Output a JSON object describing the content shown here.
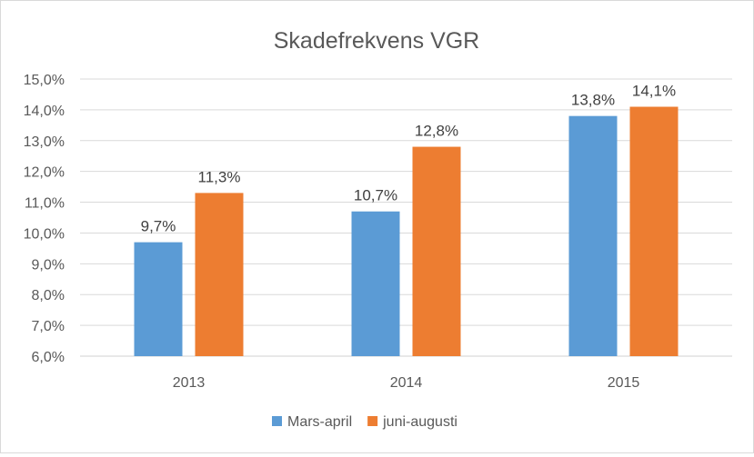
{
  "chart_data": {
    "type": "bar",
    "title": "Skadefrekvens VGR",
    "categories": [
      "2013",
      "2014",
      "2015"
    ],
    "series": [
      {
        "name": "Mars-april",
        "values": [
          9.7,
          10.7,
          13.8
        ],
        "labels": [
          "9,7%",
          "10,7%",
          "13,8%"
        ],
        "color": "#5b9bd5"
      },
      {
        "name": "juni-augusti",
        "values": [
          11.3,
          12.8,
          14.1
        ],
        "labels": [
          "11,3%",
          "12,8%",
          "14,1%"
        ],
        "color": "#ed7d31"
      }
    ],
    "ylim": [
      6.0,
      15.0
    ],
    "yticks": [
      "6,0%",
      "7,0%",
      "8,0%",
      "9,0%",
      "10,0%",
      "11,0%",
      "12,0%",
      "13,0%",
      "14,0%",
      "15,0%"
    ],
    "grid": true,
    "legend_position": "bottom"
  }
}
